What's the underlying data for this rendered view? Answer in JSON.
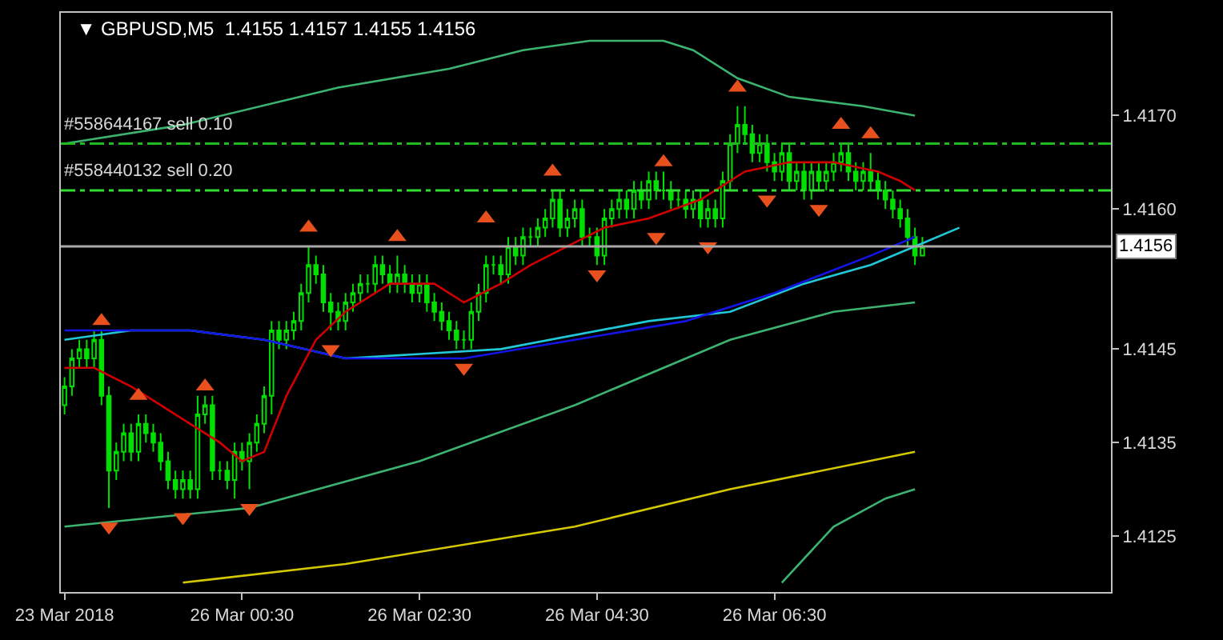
{
  "chart_data": {
    "type": "candlestick",
    "title": "▼ GBPUSD,M5  1.4155 1.4157 1.4155 1.4156",
    "color": "#00e000",
    "categories": [
      "23 Mar 2018",
      null,
      null,
      null,
      null,
      null,
      null,
      null,
      null,
      null,
      null,
      null,
      null,
      null,
      null,
      null,
      null,
      null,
      null,
      null,
      null,
      null,
      null,
      null,
      "26 Mar 00:30",
      null,
      null,
      null,
      null,
      null,
      null,
      null,
      null,
      null,
      null,
      null,
      null,
      null,
      null,
      null,
      null,
      null,
      null,
      null,
      null,
      null,
      null,
      null,
      "26 Mar 02:30",
      null,
      null,
      null,
      null,
      null,
      null,
      null,
      null,
      null,
      null,
      null,
      null,
      null,
      null,
      null,
      null,
      null,
      null,
      null,
      null,
      null,
      null,
      null,
      "26 Mar 04:30",
      null,
      null,
      null,
      null,
      null,
      null,
      null,
      null,
      null,
      null,
      null,
      null,
      null,
      null,
      null,
      null,
      null,
      null,
      null,
      null,
      null,
      null,
      null,
      "26 Mar 06:30",
      null,
      null,
      null,
      null,
      null,
      null,
      null,
      null,
      null,
      null,
      null,
      null,
      null,
      null,
      null,
      null,
      null,
      null,
      null,
      null,
      null,
      null,
      null,
      null,
      null,
      null,
      null,
      null,
      null,
      null,
      null,
      null,
      null,
      null,
      null,
      null,
      null,
      null,
      null,
      null,
      null,
      null,
      null,
      null,
      null
    ],
    "ohlc": [
      [
        1.4139,
        1.4142,
        1.4138,
        1.4141
      ],
      [
        1.4141,
        1.4145,
        1.414,
        1.4144
      ],
      [
        1.4144,
        1.4146,
        1.4143,
        1.4145
      ],
      [
        1.4145,
        1.4146,
        1.4143,
        1.4144
      ],
      [
        1.4144,
        1.4147,
        1.4143,
        1.4146
      ],
      [
        1.4146,
        1.4147,
        1.4139,
        1.414
      ],
      [
        1.414,
        1.4141,
        1.4128,
        1.4132
      ],
      [
        1.4132,
        1.4135,
        1.4131,
        1.4134
      ],
      [
        1.4134,
        1.4137,
        1.4133,
        1.4136
      ],
      [
        1.4136,
        1.4137,
        1.4133,
        1.4134
      ],
      [
        1.4134,
        1.4138,
        1.4133,
        1.4137
      ],
      [
        1.4137,
        1.4138,
        1.4135,
        1.4136
      ],
      [
        1.4136,
        1.4137,
        1.4134,
        1.4135
      ],
      [
        1.4135,
        1.4136,
        1.4132,
        1.4133
      ],
      [
        1.4133,
        1.4134,
        1.413,
        1.4131
      ],
      [
        1.4131,
        1.4132,
        1.4129,
        1.413
      ],
      [
        1.413,
        1.4132,
        1.4129,
        1.4131
      ],
      [
        1.4131,
        1.4132,
        1.4129,
        1.413
      ],
      [
        1.413,
        1.414,
        1.4129,
        1.4138
      ],
      [
        1.4138,
        1.414,
        1.4137,
        1.4139
      ],
      [
        1.4139,
        1.414,
        1.4131,
        1.4132
      ],
      [
        1.4132,
        1.4133,
        1.4131,
        1.4132
      ],
      [
        1.4132,
        1.4133,
        1.413,
        1.4131
      ],
      [
        1.4131,
        1.4135,
        1.4129,
        1.4134
      ],
      [
        1.4134,
        1.4135,
        1.4132,
        1.4133
      ],
      [
        1.4133,
        1.4136,
        1.413,
        1.4135
      ],
      [
        1.4135,
        1.4138,
        1.4134,
        1.4137
      ],
      [
        1.4137,
        1.4141,
        1.4136,
        1.414
      ],
      [
        1.414,
        1.4148,
        1.4138,
        1.4147
      ],
      [
        1.4147,
        1.4148,
        1.4145,
        1.4146
      ],
      [
        1.4146,
        1.4148,
        1.4145,
        1.4147
      ],
      [
        1.4147,
        1.4149,
        1.4146,
        1.4148
      ],
      [
        1.4148,
        1.4152,
        1.4147,
        1.4151
      ],
      [
        1.4151,
        1.4156,
        1.415,
        1.4154
      ],
      [
        1.4154,
        1.4155,
        1.4152,
        1.4153
      ],
      [
        1.4153,
        1.4154,
        1.4149,
        1.415
      ],
      [
        1.415,
        1.4151,
        1.4147,
        1.4149
      ],
      [
        1.4149,
        1.415,
        1.4147,
        1.4148
      ],
      [
        1.4148,
        1.4151,
        1.4147,
        1.415
      ],
      [
        1.415,
        1.4152,
        1.4149,
        1.4151
      ],
      [
        1.4151,
        1.4153,
        1.415,
        1.4152
      ],
      [
        1.4152,
        1.4153,
        1.4151,
        1.4152
      ],
      [
        1.4152,
        1.4155,
        1.4151,
        1.4154
      ],
      [
        1.4154,
        1.4155,
        1.4152,
        1.4153
      ],
      [
        1.4153,
        1.4154,
        1.4151,
        1.4152
      ],
      [
        1.4152,
        1.4155,
        1.4151,
        1.4153
      ],
      [
        1.4153,
        1.4154,
        1.4151,
        1.4152
      ],
      [
        1.4152,
        1.4153,
        1.415,
        1.4151
      ],
      [
        1.4151,
        1.4153,
        1.415,
        1.4152
      ],
      [
        1.4152,
        1.4153,
        1.4149,
        1.415
      ],
      [
        1.415,
        1.4151,
        1.4148,
        1.4149
      ],
      [
        1.4149,
        1.415,
        1.4147,
        1.4148
      ],
      [
        1.4148,
        1.4149,
        1.4146,
        1.4147
      ],
      [
        1.4147,
        1.4148,
        1.4145,
        1.4146
      ],
      [
        1.4146,
        1.4147,
        1.4145,
        1.4146
      ],
      [
        1.4146,
        1.415,
        1.4145,
        1.4149
      ],
      [
        1.4149,
        1.4152,
        1.4148,
        1.4151
      ],
      [
        1.4151,
        1.4155,
        1.415,
        1.4154
      ],
      [
        1.4154,
        1.4155,
        1.4153,
        1.4154
      ],
      [
        1.4154,
        1.4155,
        1.4152,
        1.4153
      ],
      [
        1.4153,
        1.4157,
        1.4152,
        1.4156
      ],
      [
        1.4156,
        1.4157,
        1.4154,
        1.4155
      ],
      [
        1.4155,
        1.4158,
        1.4154,
        1.4157
      ],
      [
        1.4157,
        1.4158,
        1.4156,
        1.4157
      ],
      [
        1.4157,
        1.4159,
        1.4156,
        1.4158
      ],
      [
        1.4158,
        1.416,
        1.4157,
        1.4159
      ],
      [
        1.4159,
        1.4162,
        1.4158,
        1.4161
      ],
      [
        1.4161,
        1.4162,
        1.4157,
        1.4158
      ],
      [
        1.4158,
        1.416,
        1.4157,
        1.4159
      ],
      [
        1.4159,
        1.4161,
        1.4158,
        1.416
      ],
      [
        1.416,
        1.4161,
        1.4156,
        1.4157
      ],
      [
        1.4157,
        1.4158,
        1.4156,
        1.4157
      ],
      [
        1.4157,
        1.4158,
        1.4154,
        1.4155
      ],
      [
        1.4155,
        1.416,
        1.4154,
        1.4159
      ],
      [
        1.4159,
        1.4161,
        1.4158,
        1.416
      ],
      [
        1.416,
        1.4162,
        1.4159,
        1.4161
      ],
      [
        1.4161,
        1.4162,
        1.4159,
        1.416
      ],
      [
        1.416,
        1.4163,
        1.4159,
        1.4162
      ],
      [
        1.4162,
        1.4163,
        1.416,
        1.4161
      ],
      [
        1.4161,
        1.4164,
        1.416,
        1.4163
      ],
      [
        1.4163,
        1.4164,
        1.4161,
        1.4162
      ],
      [
        1.4162,
        1.4164,
        1.4161,
        1.4162
      ],
      [
        1.4162,
        1.4163,
        1.416,
        1.4161
      ],
      [
        1.4161,
        1.4162,
        1.416,
        1.4161
      ],
      [
        1.4161,
        1.4162,
        1.4159,
        1.416
      ],
      [
        1.416,
        1.4162,
        1.4159,
        1.4161
      ],
      [
        1.4161,
        1.4162,
        1.4158,
        1.4159
      ],
      [
        1.4159,
        1.4161,
        1.4158,
        1.416
      ],
      [
        1.416,
        1.4161,
        1.4158,
        1.4159
      ],
      [
        1.4159,
        1.4164,
        1.4158,
        1.4163
      ],
      [
        1.4163,
        1.4168,
        1.4162,
        1.4167
      ],
      [
        1.4167,
        1.4171,
        1.4166,
        1.4169
      ],
      [
        1.4169,
        1.4171,
        1.4167,
        1.4168
      ],
      [
        1.4168,
        1.4169,
        1.4165,
        1.4166
      ],
      [
        1.4166,
        1.4168,
        1.4165,
        1.4167
      ],
      [
        1.4167,
        1.4168,
        1.4164,
        1.4165
      ],
      [
        1.4165,
        1.4166,
        1.4163,
        1.4164
      ],
      [
        1.4164,
        1.4167,
        1.4163,
        1.4166
      ],
      [
        1.4166,
        1.4167,
        1.4162,
        1.4163
      ],
      [
        1.4163,
        1.4165,
        1.4162,
        1.4164
      ],
      [
        1.4164,
        1.4165,
        1.4161,
        1.4162
      ],
      [
        1.4162,
        1.4165,
        1.4161,
        1.4164
      ],
      [
        1.4164,
        1.4165,
        1.4162,
        1.4163
      ],
      [
        1.4163,
        1.4165,
        1.4162,
        1.4164
      ],
      [
        1.4164,
        1.4166,
        1.4163,
        1.4165
      ],
      [
        1.4165,
        1.4167,
        1.4164,
        1.4166
      ],
      [
        1.4166,
        1.4167,
        1.4163,
        1.4164
      ],
      [
        1.4164,
        1.4165,
        1.4162,
        1.4163
      ],
      [
        1.4163,
        1.4165,
        1.4162,
        1.4164
      ],
      [
        1.4164,
        1.4166,
        1.4162,
        1.4163
      ],
      [
        1.4163,
        1.4164,
        1.4161,
        1.4162
      ],
      [
        1.4162,
        1.4163,
        1.416,
        1.4161
      ],
      [
        1.4161,
        1.4162,
        1.4159,
        1.416
      ],
      [
        1.416,
        1.4161,
        1.4158,
        1.4159
      ],
      [
        1.4159,
        1.416,
        1.4156,
        1.4157
      ],
      [
        1.4157,
        1.4158,
        1.4154,
        1.4155
      ],
      [
        1.4155,
        1.4157,
        1.4155,
        1.4156
      ],
      null,
      null,
      null,
      null,
      null,
      null,
      null,
      null,
      null,
      null,
      null,
      null,
      null,
      null,
      null,
      null,
      null,
      null,
      null,
      null,
      null,
      null,
      null,
      null,
      null
    ],
    "series": [
      {
        "type": "line",
        "color": "#3cb371",
        "values": [
          1.4167,
          null,
          null,
          null,
          null,
          null,
          null,
          null,
          null,
          null,
          null,
          null,
          null,
          null,
          null,
          null,
          1.4169,
          null,
          null,
          null,
          null,
          null,
          null,
          null,
          null,
          null,
          null,
          null,
          null,
          null,
          null,
          null,
          null,
          null,
          null,
          null,
          null,
          1.4173,
          null,
          null,
          null,
          null,
          null,
          null,
          null,
          null,
          null,
          null,
          null,
          null,
          null,
          null,
          1.4175,
          null,
          null,
          null,
          null,
          null,
          null,
          null,
          null,
          null,
          1.4177,
          null,
          null,
          null,
          null,
          null,
          null,
          null,
          null,
          1.4178,
          null,
          null,
          null,
          null,
          null,
          null,
          null,
          null,
          null,
          1.4178,
          null,
          null,
          null,
          1.4177,
          null,
          null,
          null,
          null,
          null,
          1.4174,
          null,
          null,
          null,
          null,
          null,
          null,
          1.4172,
          null,
          null,
          null,
          null,
          null,
          null,
          null,
          null,
          null,
          1.4171,
          null,
          null,
          null,
          null,
          null,
          null,
          1.417,
          null,
          null,
          null,
          null,
          null,
          null,
          null,
          null,
          null,
          null,
          null,
          null,
          null,
          null,
          null,
          null,
          null,
          null,
          null,
          null,
          null,
          null,
          null,
          null,
          null,
          null
        ]
      },
      {
        "type": "line",
        "color": "#3cb371",
        "values": [
          1.4126,
          null,
          null,
          null,
          null,
          null,
          null,
          null,
          null,
          null,
          null,
          null,
          null,
          null,
          null,
          null,
          null,
          null,
          null,
          null,
          null,
          null,
          null,
          null,
          null,
          1.4128,
          null,
          null,
          null,
          null,
          null,
          null,
          null,
          null,
          null,
          null,
          null,
          null,
          null,
          null,
          null,
          null,
          null,
          null,
          null,
          null,
          null,
          null,
          1.4133,
          null,
          null,
          null,
          null,
          null,
          null,
          null,
          null,
          null,
          null,
          null,
          null,
          null,
          null,
          null,
          null,
          null,
          null,
          null,
          null,
          1.4139,
          null,
          null,
          null,
          null,
          null,
          null,
          null,
          null,
          null,
          null,
          null,
          null,
          null,
          null,
          null,
          null,
          null,
          null,
          null,
          null,
          1.4146,
          null,
          null,
          null,
          null,
          null,
          null,
          null,
          null,
          null,
          null,
          null,
          null,
          null,
          1.4149,
          null,
          null,
          null,
          null,
          null,
          null,
          null,
          null,
          null,
          null,
          1.415,
          null,
          null,
          null,
          null,
          null,
          null,
          null,
          null,
          null,
          null,
          null,
          null,
          null,
          null,
          null,
          null,
          null,
          null,
          null,
          null,
          null,
          null,
          null,
          null,
          null,
          null
        ]
      },
      {
        "type": "line",
        "color": "#3cb371",
        "values": [
          null,
          null,
          null,
          null,
          null,
          null,
          null,
          null,
          null,
          null,
          null,
          null,
          null,
          null,
          null,
          null,
          null,
          null,
          null,
          null,
          null,
          null,
          null,
          null,
          null,
          null,
          null,
          null,
          null,
          null,
          null,
          null,
          null,
          null,
          null,
          null,
          null,
          null,
          null,
          null,
          null,
          null,
          null,
          null,
          null,
          null,
          null,
          null,
          null,
          null,
          null,
          null,
          null,
          null,
          null,
          null,
          null,
          null,
          null,
          null,
          null,
          null,
          null,
          null,
          null,
          null,
          null,
          null,
          null,
          null,
          null,
          null,
          null,
          null,
          null,
          null,
          null,
          null,
          null,
          null,
          null,
          null,
          null,
          null,
          null,
          null,
          null,
          null,
          null,
          null,
          null,
          null,
          null,
          null,
          null,
          null,
          null,
          1.412,
          null,
          null,
          null,
          null,
          null,
          null,
          1.4126,
          null,
          null,
          null,
          null,
          null,
          null,
          1.4129,
          null,
          null,
          null,
          1.413,
          null,
          null,
          null,
          null,
          null,
          null,
          null,
          null,
          null,
          null,
          null,
          null,
          null,
          null,
          null,
          null,
          null,
          null,
          null,
          null,
          null,
          null,
          null,
          null,
          null,
          null
        ]
      },
      {
        "type": "line",
        "color": "#d4c800",
        "values": [
          null,
          null,
          null,
          null,
          null,
          null,
          null,
          null,
          null,
          null,
          null,
          null,
          null,
          null,
          null,
          null,
          1.412,
          null,
          null,
          null,
          null,
          null,
          null,
          null,
          null,
          null,
          null,
          null,
          null,
          null,
          null,
          null,
          null,
          null,
          null,
          null,
          null,
          null,
          1.4122,
          null,
          null,
          null,
          null,
          null,
          null,
          null,
          null,
          null,
          null,
          null,
          null,
          null,
          null,
          null,
          null,
          null,
          null,
          null,
          null,
          null,
          null,
          null,
          null,
          null,
          null,
          null,
          null,
          null,
          null,
          1.4126,
          null,
          null,
          null,
          null,
          null,
          null,
          null,
          null,
          null,
          null,
          null,
          null,
          null,
          null,
          null,
          null,
          null,
          null,
          null,
          null,
          1.413,
          null,
          null,
          null,
          null,
          null,
          null,
          null,
          null,
          null,
          null,
          null,
          null,
          null,
          null,
          null,
          null,
          null,
          null,
          null,
          null,
          null,
          null,
          null,
          null,
          1.4134,
          null,
          null,
          null,
          null,
          null,
          null,
          null,
          null,
          null,
          null,
          null,
          null,
          null,
          null,
          null,
          null,
          null,
          null,
          null,
          null,
          null,
          null,
          null,
          null,
          null,
          null
        ]
      },
      {
        "type": "line",
        "color": "#20c8d8",
        "values": [
          1.4146,
          null,
          null,
          null,
          null,
          null,
          null,
          null,
          null,
          1.4147,
          null,
          null,
          null,
          null,
          null,
          null,
          null,
          1.4147,
          null,
          null,
          null,
          null,
          null,
          null,
          null,
          null,
          null,
          1.4146,
          null,
          null,
          null,
          null,
          null,
          null,
          null,
          null,
          null,
          null,
          1.4144,
          null,
          null,
          null,
          null,
          null,
          null,
          null,
          null,
          null,
          null,
          null,
          null,
          null,
          null,
          null,
          null,
          null,
          null,
          null,
          null,
          1.4145,
          null,
          null,
          null,
          null,
          null,
          null,
          null,
          null,
          null,
          null,
          null,
          null,
          null,
          null,
          null,
          null,
          null,
          null,
          null,
          1.4148,
          null,
          null,
          null,
          null,
          null,
          null,
          null,
          null,
          null,
          null,
          1.4149,
          null,
          null,
          null,
          null,
          null,
          null,
          null,
          null,
          null,
          1.4152,
          null,
          null,
          null,
          null,
          null,
          null,
          null,
          null,
          1.4154,
          null,
          null,
          null,
          null,
          null,
          1.4156,
          null,
          null,
          null,
          null,
          null,
          1.4158,
          null,
          null,
          null,
          null,
          null,
          null,
          null,
          null,
          null,
          null,
          null,
          null,
          null,
          null,
          null,
          null,
          null,
          null,
          null,
          null
        ]
      },
      {
        "type": "line",
        "color": "#1414e6",
        "values": [
          1.4147,
          null,
          null,
          null,
          null,
          null,
          1.4147,
          null,
          null,
          null,
          null,
          null,
          null,
          null,
          null,
          null,
          null,
          1.4147,
          null,
          null,
          null,
          null,
          null,
          null,
          null,
          null,
          null,
          1.4146,
          null,
          null,
          null,
          null,
          null,
          null,
          null,
          null,
          null,
          null,
          1.4144,
          null,
          null,
          null,
          null,
          null,
          null,
          null,
          null,
          null,
          null,
          null,
          null,
          null,
          null,
          null,
          1.4144,
          null,
          null,
          null,
          null,
          null,
          null,
          null,
          null,
          null,
          null,
          null,
          null,
          null,
          null,
          1.4146,
          null,
          null,
          null,
          null,
          null,
          null,
          null,
          null,
          null,
          null,
          null,
          null,
          null,
          null,
          1.4148,
          null,
          null,
          null,
          null,
          null,
          null,
          null,
          null,
          null,
          null,
          null,
          1.4151,
          null,
          null,
          null,
          null,
          null,
          null,
          null,
          null,
          null,
          null,
          null,
          null,
          1.4155,
          null,
          null,
          null,
          null,
          null,
          1.4157,
          null,
          null,
          null,
          null,
          null,
          null,
          null,
          null,
          null,
          null,
          null,
          null,
          null,
          null,
          null,
          null,
          null,
          null,
          null,
          null,
          null,
          null,
          null,
          null,
          null,
          null
        ]
      },
      {
        "type": "line",
        "color": "#d00000",
        "values": [
          1.4143,
          null,
          null,
          null,
          1.4143,
          null,
          null,
          null,
          null,
          1.4141,
          null,
          null,
          null,
          1.4139,
          null,
          null,
          null,
          1.4137,
          null,
          null,
          null,
          1.4135,
          null,
          null,
          1.4133,
          null,
          null,
          1.4134,
          null,
          null,
          1.414,
          null,
          null,
          null,
          1.4146,
          null,
          null,
          null,
          1.4149,
          null,
          null,
          null,
          null,
          null,
          1.4152,
          null,
          null,
          null,
          null,
          null,
          1.4152,
          null,
          null,
          null,
          1.415,
          null,
          null,
          null,
          null,
          1.4152,
          null,
          null,
          null,
          1.4154,
          null,
          null,
          null,
          null,
          1.4156,
          null,
          null,
          null,
          null,
          1.4158,
          null,
          null,
          null,
          null,
          null,
          1.4159,
          null,
          null,
          null,
          null,
          null,
          null,
          1.4161,
          null,
          null,
          null,
          null,
          null,
          1.4164,
          null,
          null,
          null,
          null,
          null,
          1.4165,
          null,
          null,
          null,
          null,
          null,
          1.4165,
          null,
          null,
          null,
          null,
          null,
          1.4164,
          null,
          null,
          1.4163,
          null,
          1.4162,
          null,
          null,
          null,
          null,
          null,
          null,
          null,
          null,
          null,
          null,
          null,
          null,
          null,
          null,
          null,
          null,
          null,
          null,
          null,
          null,
          null,
          null,
          null,
          null,
          null,
          null
        ]
      },
      {
        "type": "scatter",
        "marker": "triangle",
        "color": "#e8501e",
        "values": [
          null,
          null,
          null,
          null,
          null,
          1.4148,
          null,
          null,
          null,
          null,
          1.414,
          null,
          null,
          null,
          null,
          null,
          null,
          null,
          null,
          1.4141,
          null,
          null,
          null,
          null,
          null,
          null,
          null,
          null,
          null,
          null,
          null,
          null,
          null,
          1.4158,
          null,
          null,
          null,
          null,
          null,
          null,
          null,
          null,
          null,
          null,
          null,
          1.4157,
          null,
          null,
          null,
          null,
          null,
          null,
          null,
          null,
          null,
          null,
          null,
          1.4159,
          null,
          null,
          null,
          null,
          null,
          null,
          null,
          null,
          1.4164,
          null,
          null,
          null,
          null,
          null,
          null,
          null,
          null,
          null,
          null,
          null,
          null,
          null,
          null,
          1.4165,
          null,
          null,
          null,
          null,
          null,
          null,
          null,
          null,
          null,
          1.4173,
          null,
          null,
          null,
          null,
          null,
          null,
          null,
          null,
          null,
          null,
          null,
          null,
          null,
          1.4169,
          null,
          null,
          null,
          1.4168,
          null,
          null,
          null,
          null,
          null,
          null,
          null,
          null,
          null,
          null,
          null,
          null,
          null,
          null,
          null,
          null,
          null,
          null,
          null,
          null,
          null,
          null,
          null,
          null,
          null,
          null,
          null,
          null,
          null,
          null,
          null,
          null
        ]
      },
      {
        "type": "scatter",
        "marker": "triangle-down",
        "color": "#e8501e",
        "values": [
          null,
          null,
          null,
          null,
          null,
          null,
          1.4126,
          null,
          null,
          null,
          null,
          null,
          null,
          null,
          null,
          null,
          1.4127,
          null,
          null,
          null,
          null,
          null,
          null,
          null,
          null,
          1.4128,
          null,
          null,
          null,
          null,
          null,
          null,
          null,
          null,
          null,
          null,
          1.4145,
          null,
          null,
          null,
          null,
          null,
          null,
          null,
          null,
          null,
          null,
          null,
          null,
          null,
          null,
          null,
          null,
          null,
          1.4143,
          null,
          null,
          null,
          null,
          null,
          null,
          null,
          null,
          null,
          null,
          null,
          null,
          null,
          null,
          null,
          null,
          null,
          1.4153,
          null,
          null,
          null,
          null,
          null,
          null,
          null,
          1.4157,
          null,
          null,
          null,
          null,
          null,
          null,
          1.4156,
          null,
          null,
          null,
          null,
          null,
          null,
          null,
          1.4161,
          null,
          null,
          null,
          null,
          null,
          null,
          1.416,
          null,
          null,
          null,
          null,
          null,
          null,
          null,
          null,
          null,
          null,
          null,
          null,
          null,
          null,
          null,
          null,
          null,
          null,
          null,
          null,
          null,
          null,
          null,
          null,
          null,
          null,
          null,
          null,
          null,
          null,
          null,
          null,
          null,
          null,
          null,
          null,
          null,
          null,
          null
        ]
      }
    ],
    "ref_lines": [
      {
        "axis": "y",
        "value": 1.4167,
        "label": "#558644167 sell 0.10",
        "color": "#22b822",
        "line_style": "dashed"
      },
      {
        "axis": "y",
        "value": 1.4162,
        "label": "#558440132 sell 0.20",
        "color": "#32dc32",
        "line_style": "dashed"
      },
      {
        "axis": "y",
        "value": 1.4156,
        "label": "1.4156",
        "color": "#a8a8a8",
        "line_style": "solid"
      }
    ],
    "ylim": [
      1.4119,
      1.4181
    ],
    "yticks": [
      1.4125,
      1.4135,
      1.4145,
      {
        "value": 1.416,
        "label": "1.4160"
      },
      {
        "value": 1.417,
        "label": "1.4170"
      }
    ],
    "grid": false
  }
}
